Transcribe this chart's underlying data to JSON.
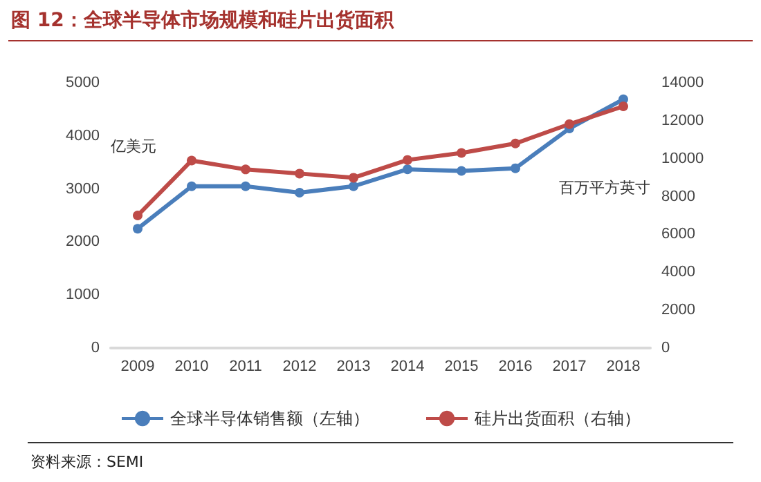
{
  "chart_data": {
    "type": "line",
    "title": "图 12：全球半导体市场规模和硅片出货面积",
    "ylabel": "亿美元",
    "y2label": "百万平方英寸",
    "annotations": [
      "资料来源：SEMI"
    ],
    "categories": [
      "2009",
      "2010",
      "2011",
      "2012",
      "2013",
      "2014",
      "2015",
      "2016",
      "2017",
      "2018"
    ],
    "series": [
      {
        "name": "全球半导体销售额（左轴）",
        "color": "#4a7ebb",
        "values": [
          2250,
          3050,
          3050,
          2930,
          3050,
          3370,
          3340,
          3390,
          4140,
          4690
        ]
      },
      {
        "name": "硅片出货面积（右轴）",
        "color": "#be4b48",
        "axis": "y2",
        "values": [
          7000,
          9900,
          9430,
          9210,
          8990,
          9930,
          10300,
          10800,
          11820,
          12760
        ]
      }
    ],
    "ylim": [
      0,
      5000
    ],
    "yticks": [
      0,
      1000,
      2000,
      3000,
      4000,
      5000
    ],
    "y2lim": [
      0,
      14000
    ],
    "y2ticks": [
      0,
      2000,
      4000,
      6000,
      8000,
      10000,
      12000,
      14000
    ],
    "grid": false,
    "legend": "bottom",
    "marker": "circle",
    "line_style": "solid"
  }
}
